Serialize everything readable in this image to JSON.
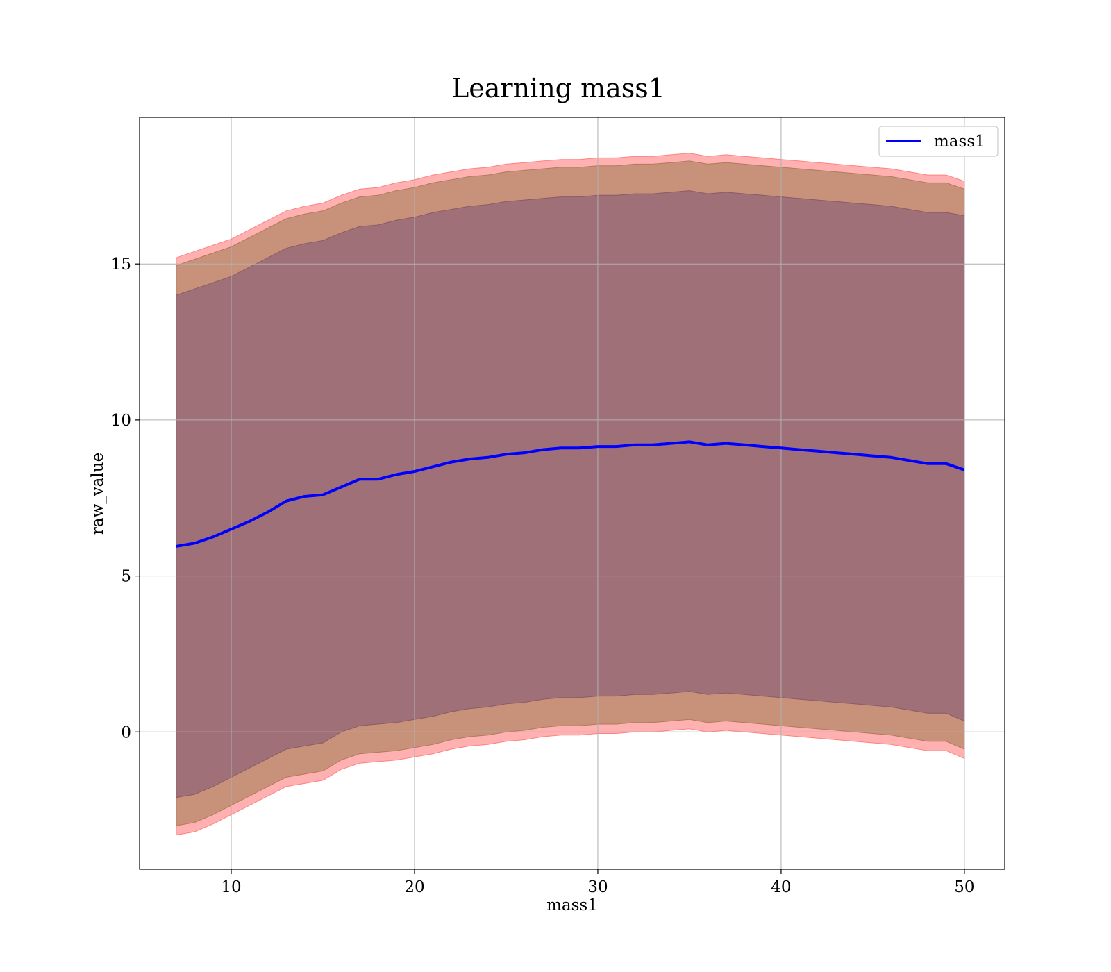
{
  "chart_data": {
    "type": "area",
    "title": "Learning mass1",
    "xlabel": "mass1",
    "ylabel": "raw_value",
    "xlim": [
      5,
      52.2
    ],
    "ylim": [
      -4.4,
      19.7
    ],
    "xticks": [
      10,
      20,
      30,
      40,
      50
    ],
    "yticks": [
      0,
      5,
      10,
      15
    ],
    "grid": true,
    "legend": {
      "placement": "top-right",
      "entries": [
        "mass1"
      ]
    },
    "colors": {
      "line": "#0000ff",
      "band_outer": "#ffb0b0",
      "band_middle": "#c8927a",
      "band_inner": "#a07078",
      "grid": "#b0b0b0"
    },
    "x": [
      7,
      8,
      9,
      10,
      11,
      12,
      13,
      14,
      15,
      16,
      17,
      18,
      19,
      20,
      21,
      22,
      23,
      24,
      25,
      26,
      27,
      28,
      29,
      30,
      31,
      32,
      33,
      34,
      35,
      36,
      37,
      38,
      39,
      40,
      41,
      42,
      43,
      44,
      45,
      46,
      47,
      48,
      49,
      50
    ],
    "series": [
      {
        "name": "mass1",
        "values": [
          5.95,
          6.05,
          6.25,
          6.5,
          6.75,
          7.05,
          7.4,
          7.55,
          7.6,
          7.85,
          8.1,
          8.1,
          8.25,
          8.35,
          8.5,
          8.65,
          8.75,
          8.8,
          8.9,
          8.95,
          9.05,
          9.1,
          9.1,
          9.15,
          9.15,
          9.2,
          9.2,
          9.25,
          9.3,
          9.2,
          9.25,
          9.2,
          9.15,
          9.1,
          9.05,
          9.0,
          8.95,
          8.9,
          8.85,
          8.8,
          8.7,
          8.6,
          8.6,
          8.4
        ]
      }
    ],
    "bands": [
      {
        "level": "outer",
        "upper": [
          15.2,
          15.4,
          15.6,
          15.8,
          16.1,
          16.4,
          16.7,
          16.85,
          16.95,
          17.2,
          17.4,
          17.45,
          17.6,
          17.7,
          17.85,
          17.95,
          18.05,
          18.1,
          18.2,
          18.25,
          18.3,
          18.35,
          18.35,
          18.4,
          18.4,
          18.45,
          18.45,
          18.5,
          18.55,
          18.45,
          18.5,
          18.45,
          18.4,
          18.35,
          18.3,
          18.25,
          18.2,
          18.15,
          18.1,
          18.05,
          17.95,
          17.85,
          17.85,
          17.65
        ],
        "lower": [
          -3.3,
          -3.2,
          -2.95,
          -2.65,
          -2.35,
          -2.05,
          -1.75,
          -1.65,
          -1.55,
          -1.2,
          -1.0,
          -0.95,
          -0.9,
          -0.8,
          -0.7,
          -0.55,
          -0.45,
          -0.4,
          -0.3,
          -0.25,
          -0.15,
          -0.1,
          -0.1,
          -0.05,
          -0.05,
          0.0,
          0.0,
          0.05,
          0.1,
          0.0,
          0.05,
          0.0,
          -0.05,
          -0.1,
          -0.15,
          -0.2,
          -0.25,
          -0.3,
          -0.35,
          -0.4,
          -0.5,
          -0.6,
          -0.6,
          -0.85
        ]
      },
      {
        "level": "middle",
        "upper": [
          14.95,
          15.15,
          15.35,
          15.55,
          15.85,
          16.15,
          16.45,
          16.6,
          16.7,
          16.95,
          17.15,
          17.2,
          17.35,
          17.45,
          17.6,
          17.7,
          17.8,
          17.85,
          17.95,
          18.0,
          18.05,
          18.1,
          18.1,
          18.15,
          18.15,
          18.2,
          18.2,
          18.25,
          18.3,
          18.2,
          18.25,
          18.2,
          18.15,
          18.1,
          18.05,
          18.0,
          17.95,
          17.9,
          17.85,
          17.8,
          17.7,
          17.6,
          17.6,
          17.4
        ],
        "lower": [
          -3.0,
          -2.9,
          -2.65,
          -2.35,
          -2.05,
          -1.75,
          -1.45,
          -1.35,
          -1.25,
          -0.9,
          -0.7,
          -0.65,
          -0.6,
          -0.5,
          -0.4,
          -0.25,
          -0.15,
          -0.1,
          0.0,
          0.05,
          0.15,
          0.2,
          0.2,
          0.25,
          0.25,
          0.3,
          0.3,
          0.35,
          0.4,
          0.3,
          0.35,
          0.3,
          0.25,
          0.2,
          0.15,
          0.1,
          0.05,
          0.0,
          -0.05,
          -0.1,
          -0.2,
          -0.3,
          -0.3,
          -0.55
        ]
      },
      {
        "level": "inner",
        "upper": [
          14.0,
          14.2,
          14.4,
          14.6,
          14.9,
          15.2,
          15.5,
          15.65,
          15.75,
          16.0,
          16.2,
          16.25,
          16.4,
          16.5,
          16.65,
          16.75,
          16.85,
          16.9,
          17.0,
          17.05,
          17.1,
          17.15,
          17.15,
          17.2,
          17.2,
          17.25,
          17.25,
          17.3,
          17.35,
          17.25,
          17.3,
          17.25,
          17.2,
          17.15,
          17.1,
          17.05,
          17.0,
          16.95,
          16.9,
          16.85,
          16.75,
          16.65,
          16.65,
          16.55
        ],
        "lower": [
          -2.1,
          -2.0,
          -1.75,
          -1.45,
          -1.15,
          -0.85,
          -0.55,
          -0.45,
          -0.35,
          0.0,
          0.2,
          0.25,
          0.3,
          0.4,
          0.5,
          0.65,
          0.75,
          0.8,
          0.9,
          0.95,
          1.05,
          1.1,
          1.1,
          1.15,
          1.15,
          1.2,
          1.2,
          1.25,
          1.3,
          1.2,
          1.25,
          1.2,
          1.15,
          1.1,
          1.05,
          1.0,
          0.95,
          0.9,
          0.85,
          0.8,
          0.7,
          0.6,
          0.6,
          0.35
        ]
      }
    ]
  }
}
